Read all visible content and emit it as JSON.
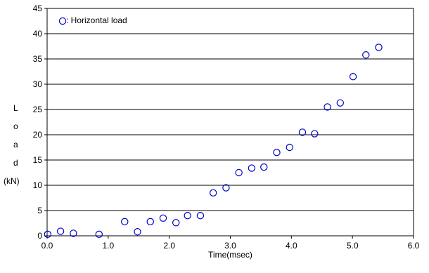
{
  "chart_data": {
    "type": "scatter",
    "xlabel": "Time(msec)",
    "ylabel_letters": [
      "L",
      "o",
      "a",
      "d"
    ],
    "ylabel_unit": "(kN)",
    "xlim": [
      0,
      6
    ],
    "ylim": [
      0,
      45
    ],
    "x_ticks": [
      0,
      1,
      2,
      3,
      4,
      5,
      6
    ],
    "x_tick_labels": [
      "0.0",
      "1.0",
      "2.0",
      "3.0",
      "4.0",
      "5.0",
      "6.0"
    ],
    "y_ticks": [
      0,
      5,
      10,
      15,
      20,
      25,
      30,
      35,
      40,
      45
    ],
    "y_tick_labels": [
      "0",
      "5",
      "10",
      "15",
      "20",
      "25",
      "30",
      "35",
      "40",
      "45"
    ],
    "grid": "horizontal",
    "legend_position": "top-left",
    "series": [
      {
        "name": ": Horizontal load",
        "marker": "open-circle",
        "color": "#0000cc",
        "points": [
          [
            0.01,
            0.3
          ],
          [
            0.22,
            0.9
          ],
          [
            0.43,
            0.5
          ],
          [
            0.85,
            0.3
          ],
          [
            1.27,
            2.8
          ],
          [
            1.48,
            0.8
          ],
          [
            1.69,
            2.8
          ],
          [
            1.9,
            3.5
          ],
          [
            2.11,
            2.6
          ],
          [
            2.3,
            4.0
          ],
          [
            2.51,
            4.0
          ],
          [
            2.72,
            8.5
          ],
          [
            2.93,
            9.5
          ],
          [
            3.14,
            12.5
          ],
          [
            3.35,
            13.4
          ],
          [
            3.55,
            13.6
          ],
          [
            3.76,
            16.5
          ],
          [
            3.97,
            17.5
          ],
          [
            4.18,
            20.5
          ],
          [
            4.38,
            20.2
          ],
          [
            4.59,
            25.5
          ],
          [
            4.8,
            26.3
          ],
          [
            5.01,
            31.5
          ],
          [
            5.22,
            35.8
          ],
          [
            5.43,
            37.3
          ]
        ]
      }
    ]
  }
}
